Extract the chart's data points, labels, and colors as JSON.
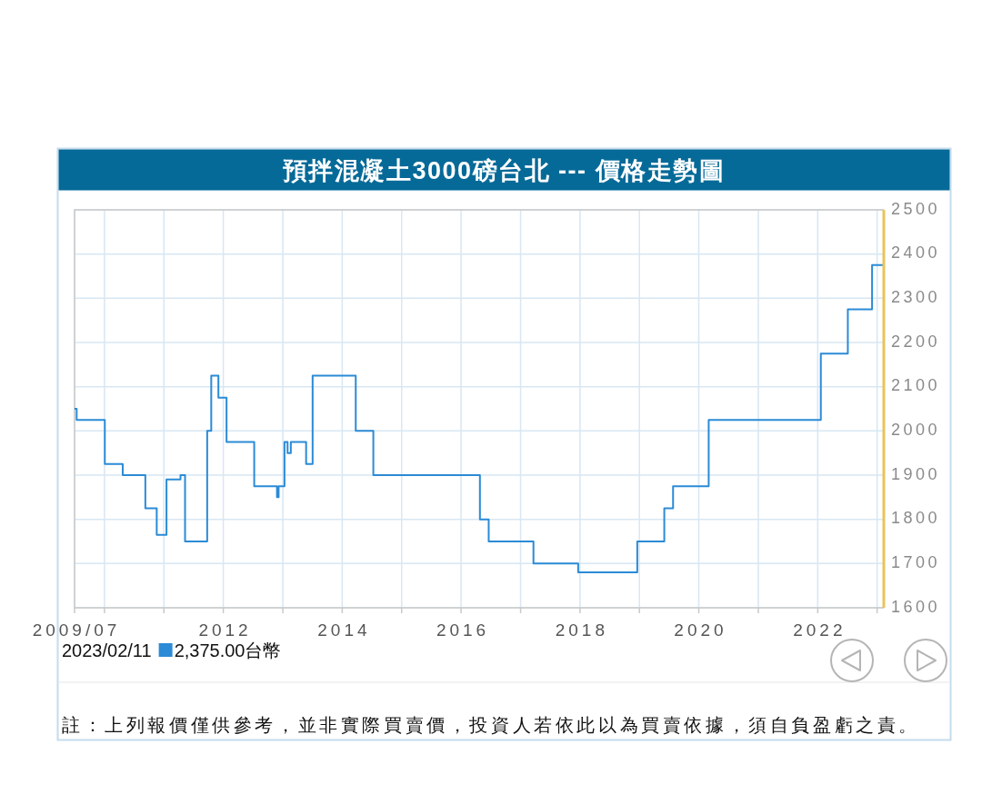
{
  "chart_data": {
    "type": "step",
    "title": "預拌混凝土3000磅台北 --- 價格走勢圖",
    "x": [
      "2009-07-01",
      "2009-07-14",
      "2010-01-03",
      "2010-04-23",
      "2010-09-09",
      "2010-11-18",
      "2011-01-17",
      "2011-04-13",
      "2011-05-11",
      "2011-09-24",
      "2011-10-19",
      "2011-12-02",
      "2012-01-21",
      "2012-07-09",
      "2012-11-26",
      "2012-12-06",
      "2013-01-11",
      "2013-01-30",
      "2013-02-19",
      "2013-05-24",
      "2013-07-03",
      "2014-03-25",
      "2014-07-11",
      "2016-04-26",
      "2016-06-19",
      "2017-03-21",
      "2017-12-21",
      "2018-12-19",
      "2019-06-03",
      "2019-07-27",
      "2020-03-02",
      "2022-01-20",
      "2022-07-05",
      "2022-12-01",
      "2023-02-11"
    ],
    "series": [
      {
        "color": "#2b8bd6",
        "values": [
          2050,
          2025,
          1925,
          1900,
          1825,
          1765,
          1890,
          1900,
          1750,
          2000,
          2125,
          2075,
          1975,
          1875,
          1850,
          1875,
          1975,
          1950,
          1975,
          1925,
          2125,
          2000,
          1900,
          1800,
          1750,
          1700,
          1680,
          1750,
          1825,
          1875,
          2025,
          2175,
          2275,
          2375,
          2375
        ]
      }
    ],
    "xlim": [
      "2009-07-01",
      "2023-02-11"
    ],
    "xticks": [
      {
        "value": "2009-07-01",
        "label": "2009/07"
      },
      {
        "value": "2010-01-01",
        "label": null
      },
      {
        "value": "2011-01-01",
        "label": null
      },
      {
        "value": "2012-01-01",
        "label": "2012"
      },
      {
        "value": "2013-01-01",
        "label": null
      },
      {
        "value": "2014-01-01",
        "label": "2014"
      },
      {
        "value": "2015-01-01",
        "label": null
      },
      {
        "value": "2016-01-01",
        "label": "2016"
      },
      {
        "value": "2017-01-01",
        "label": null
      },
      {
        "value": "2018-01-01",
        "label": "2018"
      },
      {
        "value": "2019-01-01",
        "label": null
      },
      {
        "value": "2020-01-01",
        "label": "2020"
      },
      {
        "value": "2021-01-01",
        "label": null
      },
      {
        "value": "2022-01-01",
        "label": "2022"
      },
      {
        "value": "2023-01-01",
        "label": null
      }
    ],
    "ylim": [
      1600,
      2500
    ],
    "yticks": [
      1600,
      1700,
      1800,
      1900,
      2000,
      2100,
      2200,
      2300,
      2400,
      2500
    ],
    "grid": true,
    "annotations": [
      "2023/02/11",
      "2,375.00台幣",
      "註：上列報價僅供參考，並非實際買賣價，投資人若依此以為買賣依據，須自負盈虧之責。"
    ]
  }
}
